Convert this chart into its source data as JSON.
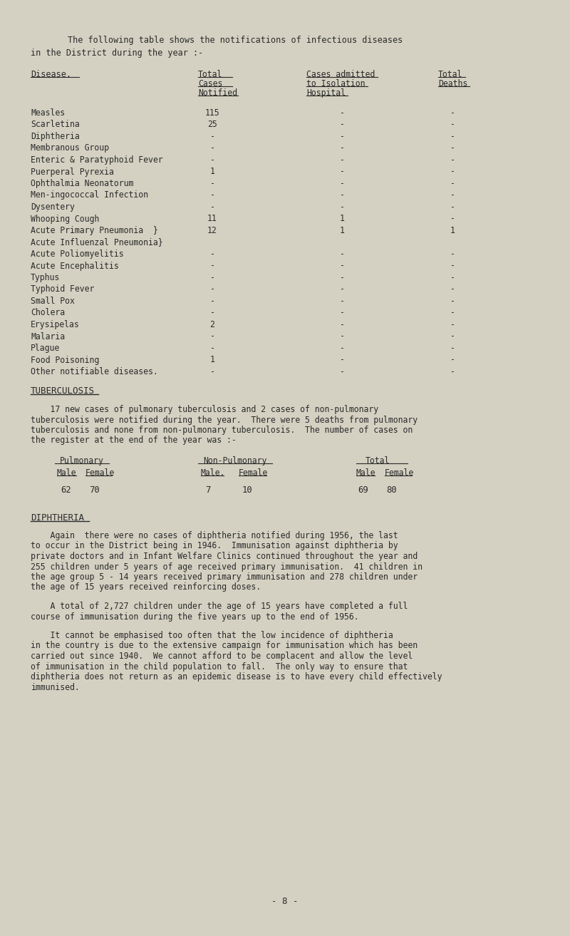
{
  "bg_color": "#d4d1c2",
  "text_color": "#2a2a2a",
  "intro_line1": "The following table shows the notifications of infectious diseases",
  "intro_line2": "in the District during the year :-",
  "col1_header": "Disease.",
  "col2_header_lines": [
    "Total",
    "Cases",
    "Notified"
  ],
  "col3_header_lines": [
    "Cases admitted",
    "to Isolation",
    "Hospital"
  ],
  "col4_header_lines": [
    "Total",
    "Deaths"
  ],
  "diseases": [
    {
      "name": "Measles",
      "total": "115",
      "admitted": "-",
      "deaths": "-"
    },
    {
      "name": "Scarletina",
      "total": "25",
      "admitted": "-",
      "deaths": "-"
    },
    {
      "name": "Diphtheria",
      "total": "-",
      "admitted": "-",
      "deaths": "-"
    },
    {
      "name": "Membranous Group",
      "total": "-",
      "admitted": "-",
      "deaths": "-"
    },
    {
      "name": "Enteric & Paratyphoid Fever",
      "total": "-",
      "admitted": "-",
      "deaths": "-"
    },
    {
      "name": "Puerperal Pyrexia",
      "total": "1",
      "admitted": "-",
      "deaths": "-"
    },
    {
      "name": "Ophthalmia Neonatorum",
      "total": "-",
      "admitted": "-",
      "deaths": "-"
    },
    {
      "name": "Men-ingococcal Infection",
      "total": "-",
      "admitted": "-",
      "deaths": "-"
    },
    {
      "name": "Dysentery",
      "total": "-",
      "admitted": "-",
      "deaths": "-"
    },
    {
      "name": "Whooping Cough",
      "total": "11",
      "admitted": "1",
      "deaths": "-"
    },
    {
      "name": "Acute Primary Pneumonia  }",
      "total": "12",
      "admitted": "1",
      "deaths": "1"
    },
    {
      "name": "Acute Influenzal Pneumonia}",
      "total": "",
      "admitted": "",
      "deaths": ""
    },
    {
      "name": "Acute Poliomyelitis",
      "total": "-",
      "admitted": "-",
      "deaths": "-"
    },
    {
      "name": "Acute Encephalitis",
      "total": "-",
      "admitted": "-",
      "deaths": "-"
    },
    {
      "name": "Typhus",
      "total": "-",
      "admitted": "-",
      "deaths": "-"
    },
    {
      "name": "Typhoid Fever",
      "total": "-",
      "admitted": "-",
      "deaths": "-"
    },
    {
      "name": "Small Pox",
      "total": "-",
      "admitted": "-",
      "deaths": "-"
    },
    {
      "name": "Cholera",
      "total": "-",
      "admitted": "-",
      "deaths": "-"
    },
    {
      "name": "Erysipelas",
      "total": "2",
      "admitted": "-",
      "deaths": "-"
    },
    {
      "name": "Malaria",
      "total": "-",
      "admitted": "-",
      "deaths": "-"
    },
    {
      "name": "Plague",
      "total": "-",
      "admitted": "-",
      "deaths": "-"
    },
    {
      "name": "Food Poisoning",
      "total": "1",
      "admitted": "-",
      "deaths": "-"
    },
    {
      "name": "Other notifiable diseases.",
      "total": "-",
      "admitted": "-",
      "deaths": "-"
    }
  ],
  "tuberculosis_heading": "TUBERCULOSIS",
  "tuberculosis_para": [
    "    17 new cases of pulmonary tuberculosis and 2 cases of non-pulmonary",
    "tuberculosis were notified during the year.  There were 5 deaths from pulmonary",
    "tuberculosis and none from non-pulmonary tuberculosis.  The number of cases on",
    "the register at the end of the year was :-"
  ],
  "tb_headers": [
    "Pulmonary",
    "Non-Pulmonary",
    "Total"
  ],
  "tb_subheaders": [
    [
      "Male",
      "Female"
    ],
    [
      "Male.",
      "Female"
    ],
    [
      "Male",
      "Female"
    ]
  ],
  "tb_values": [
    [
      "62",
      "70"
    ],
    [
      "7",
      "10"
    ],
    [
      "69",
      "80"
    ]
  ],
  "diphtheria_heading": "DIPHTHERIA",
  "diphtheria_para1": [
    "    Again  there were no cases of diphtheria notified during 1956, the last",
    "to occur in the District being in 1946.  Immunisation against diphtheria by",
    "private doctors and in Infant Welfare Clinics continued throughout the year and",
    "255 children under 5 years of age received primary immunisation.  41 children in",
    "the age group 5 - 14 years received primary immunisation and 278 children under",
    "the age of 15 years received reinforcing doses."
  ],
  "diphtheria_para2": [
    "    A total of 2,727 children under the age of 15 years have completed a full",
    "course of immunisation during the five years up to the end of 1956."
  ],
  "diphtheria_para3": [
    "    It cannot be emphasised too often that the low incidence of diphtheria",
    "in the country is due to the extensive campaign for immunisation which has been",
    "carried out since 1940.  We cannot afford to be complacent and allow the level",
    "of immunisation in the child population to fall.  The only way to ensure that",
    "diphtheria does not return as an epidemic disease is to have every child effectively",
    "immunised."
  ],
  "page_number": "- 8 -"
}
